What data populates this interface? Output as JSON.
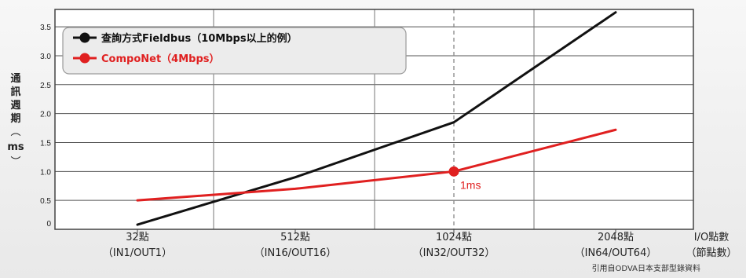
{
  "chart_data": {
    "type": "line",
    "categories": [
      "32點",
      "512點",
      "1024點",
      "2048點"
    ],
    "category_sublabels": [
      "（IN1/OUT1）",
      "（IN16/OUT16）",
      "（IN32/OUT32）",
      "（IN64/OUT64）"
    ],
    "xlabel": "I/O點數",
    "xlabel_sub": "（節點數）",
    "ylabel_chars": [
      "通",
      "訊",
      "週",
      "期"
    ],
    "ylabel_unit": "ms",
    "ylabel_open": "︵",
    "ylabel_close": "︶",
    "ylim": [
      0,
      3.8
    ],
    "yticks": [
      0,
      0.5,
      1.0,
      1.5,
      2.0,
      2.5,
      3.0,
      3.5
    ],
    "ytick_labels": [
      "0",
      "0.5",
      "1.0",
      "1.5",
      "2.0",
      "2.5",
      "3.0",
      "3.5"
    ],
    "grid": true,
    "legend_position": "top-left",
    "series": [
      {
        "name": "查詢方式Fieldbus（10Mbps以上的例）",
        "color": "#111111",
        "values": [
          0.08,
          0.9,
          1.85,
          3.75
        ]
      },
      {
        "name": "CompoNet（4Mbps）",
        "color": "#e02020",
        "values": [
          0.5,
          0.7,
          1.0,
          1.72
        ]
      }
    ],
    "highlight": {
      "category": "1024點",
      "series": "CompoNet（4Mbps）",
      "label": "1ms",
      "color": "#e02020"
    },
    "reference_line_at": "1024點"
  },
  "footnote": "引用自ODVA日本支部型錄資料"
}
